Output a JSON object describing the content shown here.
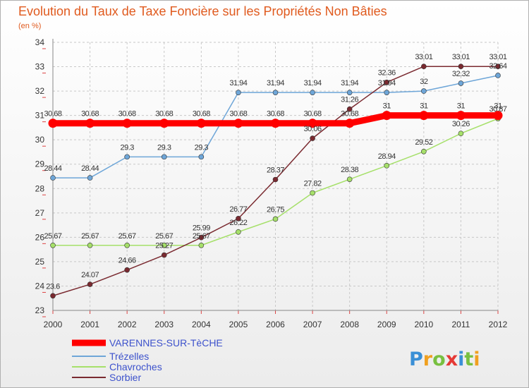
{
  "chart_data": {
    "type": "line",
    "title": "Evolution du Taux de Taxe Foncière sur les Propriétés Non Bâties",
    "subtitle": "(en %)",
    "x": [
      "2000",
      "2001",
      "2002",
      "2003",
      "2004",
      "2005",
      "2006",
      "2007",
      "2008",
      "2009",
      "2010",
      "2011",
      "2012"
    ],
    "ylim": [
      23,
      34
    ],
    "yticks": [
      "23",
      "24",
      "25",
      "26",
      "27",
      "28",
      "29",
      "30",
      "31",
      "32",
      "33",
      "34"
    ],
    "grid": true,
    "legend_position": "bottom-left",
    "series": [
      {
        "name": "VARENNES-SUR-TèCHE",
        "color": "#ff0000",
        "values": [
          30.68,
          30.68,
          30.68,
          30.68,
          30.68,
          30.68,
          30.68,
          30.68,
          30.68,
          31,
          31,
          31,
          31
        ],
        "labels": [
          "30.68",
          "30.68",
          "30.68",
          "30.68",
          "30.68",
          "30.68",
          "30.68",
          "30.68",
          "30.68",
          "31",
          "31",
          "31",
          "31"
        ]
      },
      {
        "name": "Trézelles",
        "color": "#6ea6d8",
        "values": [
          28.44,
          28.44,
          29.3,
          29.3,
          29.3,
          31.94,
          31.94,
          31.94,
          31.94,
          31.94,
          32,
          32.32,
          32.64
        ],
        "labels": [
          "28.44",
          "28.44",
          "29.3",
          "29.3",
          "29.3",
          "31.94",
          "31.94",
          "31.94",
          "31.94",
          "31.94",
          "32",
          "32.32",
          "32.64"
        ]
      },
      {
        "name": "Chavroches",
        "color": "#a6e06a",
        "values": [
          25.67,
          25.67,
          25.67,
          25.67,
          25.67,
          26.22,
          26.75,
          27.82,
          28.38,
          28.94,
          29.52,
          30.26,
          30.87
        ],
        "labels": [
          "25.67",
          "25.67",
          "25.67",
          "25.67",
          "25.67",
          "26.22",
          "26.75",
          "27.82",
          "28.38",
          "28.94",
          "29.52",
          "30.26",
          "30.87"
        ]
      },
      {
        "name": "Sorbier",
        "color": "#7a2a30",
        "values": [
          23.6,
          24.07,
          24.66,
          25.27,
          25.99,
          26.77,
          28.37,
          30.06,
          31.26,
          32.36,
          33.01,
          33.01,
          33.01
        ],
        "labels": [
          "23.6",
          "24.07",
          "24.66",
          "25.27",
          "25.99",
          "26.77",
          "28.37",
          "30.06",
          "31.26",
          "32.36",
          "33.01",
          "33.01",
          "33.01"
        ]
      }
    ]
  },
  "logo": {
    "letters": [
      {
        "ch": "P",
        "color": "#3a8fd6"
      },
      {
        "ch": "r",
        "color": "#f0a020"
      },
      {
        "ch": "o",
        "color": "#78c040"
      },
      {
        "ch": "x",
        "color": "#e53935"
      },
      {
        "ch": "i",
        "color": "#3a8fd6"
      },
      {
        "ch": "t",
        "color": "#78c040"
      },
      {
        "ch": "i",
        "color": "#f0a020"
      }
    ]
  }
}
